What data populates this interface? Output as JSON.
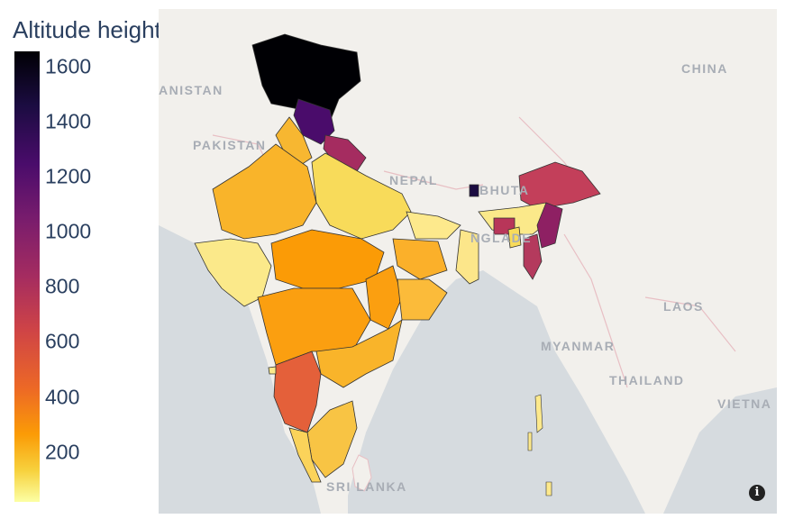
{
  "legend": {
    "title": "Altitude height in m",
    "ticks": [
      "1600",
      "1400",
      "1200",
      "1000",
      "800",
      "600",
      "400",
      "200"
    ],
    "colorscale": [
      "#000004",
      "#1b0c41",
      "#4a0c6b",
      "#781c6d",
      "#a52c60",
      "#cf4446",
      "#ed6925",
      "#fb9b06",
      "#f7d13d",
      "#fcffa4"
    ]
  },
  "map": {
    "labels": {
      "afghanistan": "ANISTAN",
      "pakistan": "PAKISTAN",
      "nepal": "NEPAL",
      "bhutan": "BHUTA",
      "bangladesh": "NGLADE",
      "china": "CHINA",
      "myanmar": "MYANMAR",
      "laos": "LAOS",
      "thailand": "THAILAND",
      "vietnam": "VIETNA",
      "srilanka": "SRI LANKA"
    },
    "colors": {
      "land": "#f2f0ec",
      "water": "#d6dbdf",
      "border": "#e8bfc4"
    },
    "info_icon": "info-icon"
  }
}
